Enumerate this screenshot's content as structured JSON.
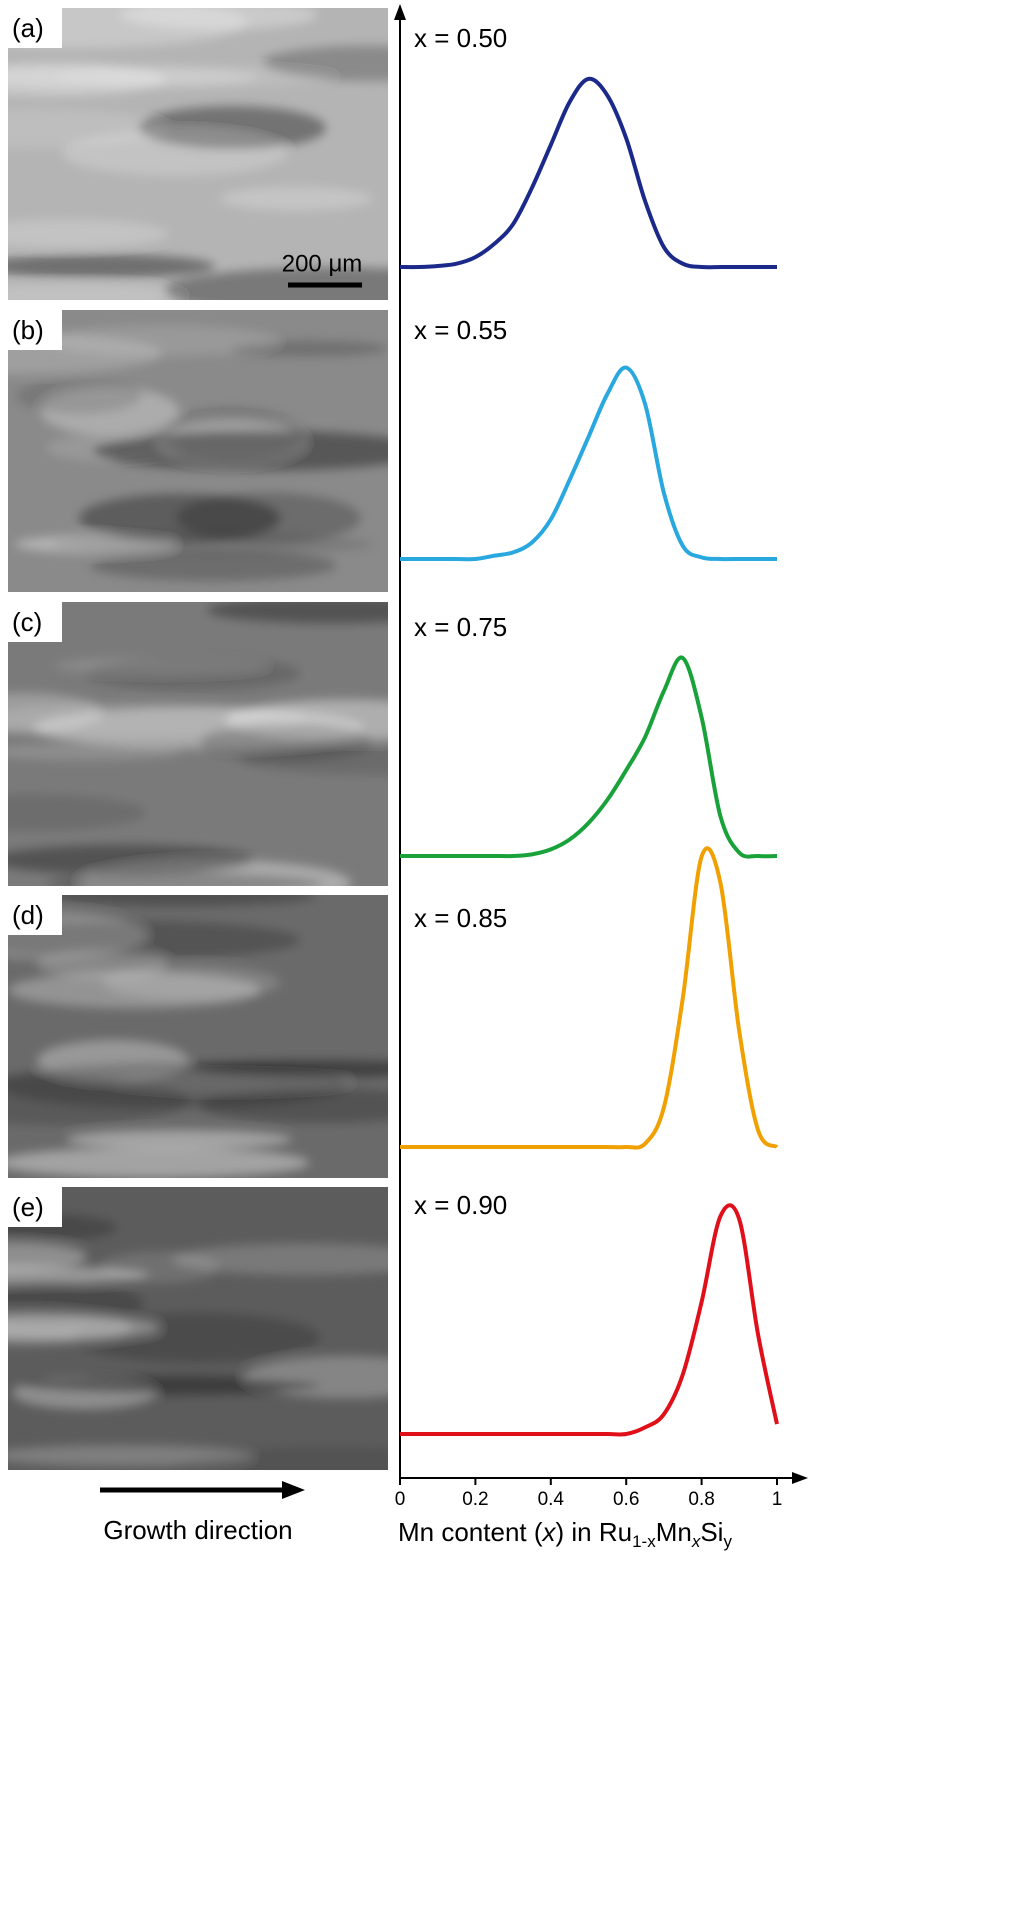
{
  "micrographs": {
    "labels": [
      "(a)",
      "(b)",
      "(c)",
      "(d)",
      "(e)"
    ],
    "scale_bar": "200 μm",
    "growth_direction": "Growth direction"
  },
  "chart_data": {
    "type": "line",
    "xlabel": [
      "Mn content (",
      "x",
      ") in Ru",
      "1-x",
      "Mn",
      "x",
      "Si",
      "y"
    ],
    "x": [
      0,
      0.05,
      0.1,
      0.15,
      0.2,
      0.25,
      0.3,
      0.35,
      0.4,
      0.45,
      0.5,
      0.55,
      0.6,
      0.65,
      0.7,
      0.75,
      0.8,
      0.85,
      0.9,
      0.95,
      1
    ],
    "xlim": [
      0,
      1
    ],
    "xticks": [
      0,
      0.2,
      0.4,
      0.6,
      0.8,
      1
    ],
    "ylim": [
      0,
      1
    ],
    "series": [
      {
        "name": "x = 0.50",
        "color": "#1b2a8a",
        "values": [
          0,
          0,
          0.003,
          0.01,
          0.03,
          0.07,
          0.13,
          0.24,
          0.37,
          0.5,
          0.57,
          0.52,
          0.39,
          0.2,
          0.06,
          0.01,
          0,
          0,
          0,
          0,
          0
        ]
      },
      {
        "name": "x = 0.55",
        "color": "#29a8e0",
        "values": [
          0,
          0,
          0,
          0,
          0,
          0.01,
          0.02,
          0.05,
          0.12,
          0.24,
          0.37,
          0.5,
          0.58,
          0.47,
          0.2,
          0.04,
          0.005,
          0,
          0,
          0,
          0
        ]
      },
      {
        "name": "x = 0.75",
        "color": "#1aa23a",
        "values": [
          0,
          0,
          0,
          0,
          0,
          0,
          0,
          0.005,
          0.02,
          0.05,
          0.1,
          0.17,
          0.26,
          0.36,
          0.5,
          0.6,
          0.42,
          0.12,
          0.01,
          0,
          0
        ]
      },
      {
        "name": "x = 0.85",
        "color": "#f0a000",
        "values": [
          0,
          0,
          0,
          0,
          0,
          0,
          0,
          0,
          0,
          0,
          0,
          0,
          0,
          0.01,
          0.12,
          0.45,
          0.88,
          0.8,
          0.35,
          0.05,
          0
        ]
      },
      {
        "name": "x = 0.90",
        "color": "#e0101a",
        "values": [
          0,
          0,
          0,
          0,
          0,
          0,
          0,
          0,
          0,
          0,
          0,
          0,
          0,
          0.02,
          0.06,
          0.18,
          0.4,
          0.66,
          0.65,
          0.3,
          0.03
        ]
      }
    ]
  }
}
